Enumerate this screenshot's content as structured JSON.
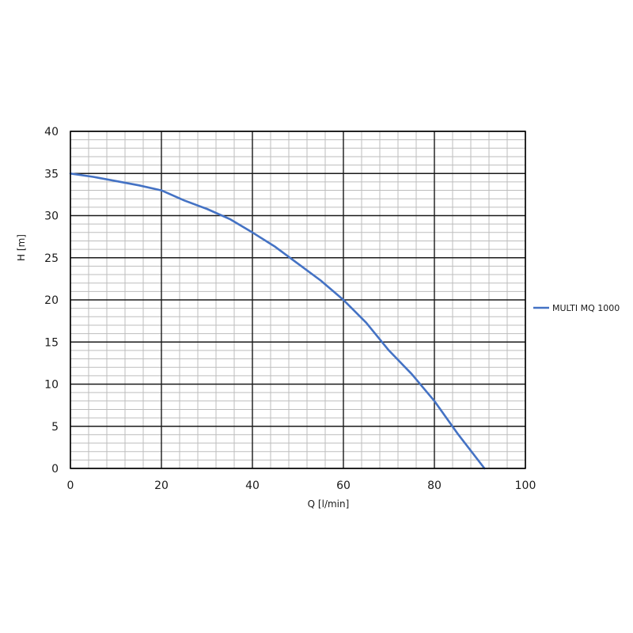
{
  "chart_data": {
    "type": "line",
    "xlabel": "Q [l/min]",
    "ylabel": "H [m]",
    "xlim": [
      0,
      100
    ],
    "ylim": [
      0,
      40
    ],
    "x_ticks": [
      "0",
      "20",
      "40",
      "60",
      "80",
      "100"
    ],
    "y_ticks": [
      "0",
      "5",
      "10",
      "15",
      "20",
      "25",
      "30",
      "35",
      "40"
    ],
    "grid": true,
    "legend_position": "right",
    "series": [
      {
        "name": "MULTI MQ 1000",
        "color": "#4472c4",
        "x": [
          0,
          5,
          10,
          15,
          20,
          25,
          30,
          35,
          40,
          45,
          50,
          55,
          60,
          65,
          70,
          75,
          80,
          85,
          91
        ],
        "y": [
          35,
          34.6,
          34.1,
          33.6,
          33,
          31.8,
          30.8,
          29.6,
          28,
          26.3,
          24.3,
          22.3,
          20,
          17.3,
          14,
          11.2,
          8,
          4.2,
          0
        ]
      }
    ]
  }
}
